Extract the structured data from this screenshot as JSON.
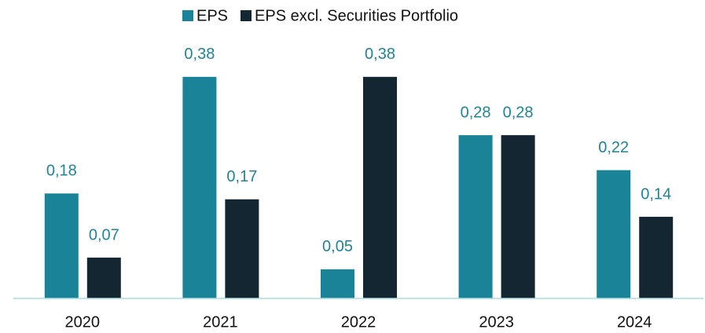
{
  "chart_data": {
    "type": "bar",
    "categories": [
      "2020",
      "2021",
      "2022",
      "2023",
      "2024"
    ],
    "series": [
      {
        "name": "EPS",
        "color": "#1a8397",
        "values": [
          0.18,
          0.38,
          0.05,
          0.28,
          0.22
        ],
        "value_labels": [
          "0,18",
          "0,38",
          "0,05",
          "0,28",
          "0,22"
        ]
      },
      {
        "name": "EPS excl. Securities Portfolio",
        "color": "#132632",
        "values": [
          0.07,
          0.17,
          0.38,
          0.28,
          0.14
        ],
        "value_labels": [
          "0,07",
          "0,17",
          "0,38",
          "0,28",
          "0,14"
        ]
      }
    ],
    "ylim": [
      0,
      0.4
    ],
    "legend": "top"
  }
}
